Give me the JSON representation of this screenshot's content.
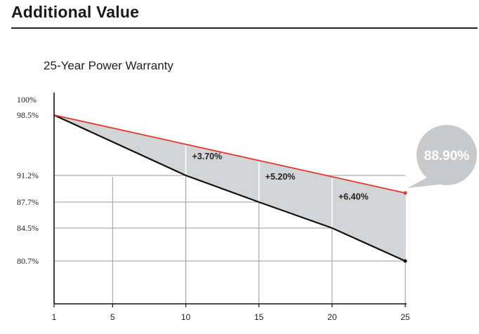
{
  "heading": "Additional Value",
  "colors": {
    "upper_line": "#e03a2f",
    "lower_line": "#111111",
    "fill": "#d3d4d6",
    "grid": "#9a9a9a",
    "bubble": "#c8c9cb",
    "bubble_text": "#ffffff"
  },
  "chart_data": {
    "type": "line",
    "title": "25-Year Power Warranty",
    "x_ticks": [
      1,
      5,
      10,
      15,
      20,
      25
    ],
    "y_ticks": [
      "100%",
      "98.5%",
      "91.2%",
      "87.7%",
      "84.5%",
      "80.7%"
    ],
    "y_tick_values": [
      100,
      98.5,
      91.2,
      87.7,
      84.5,
      80.7
    ],
    "xlim": [
      1,
      25
    ],
    "series": [
      {
        "role": "upper",
        "color": "#e03a2f",
        "x": [
          1,
          25
        ],
        "y": [
          98.5,
          88.9
        ]
      },
      {
        "role": "lower",
        "color": "#111111",
        "x": [
          1,
          10,
          15,
          20,
          25
        ],
        "y": [
          98.5,
          91.2,
          87.7,
          84.5,
          80.7
        ]
      }
    ],
    "annotations": [
      {
        "x": 10,
        "label": "+3.70%"
      },
      {
        "x": 15,
        "label": "+5.20%"
      },
      {
        "x": 20,
        "label": "+6.40%"
      }
    ],
    "callout": {
      "x": 25,
      "label": "88.90%"
    }
  }
}
